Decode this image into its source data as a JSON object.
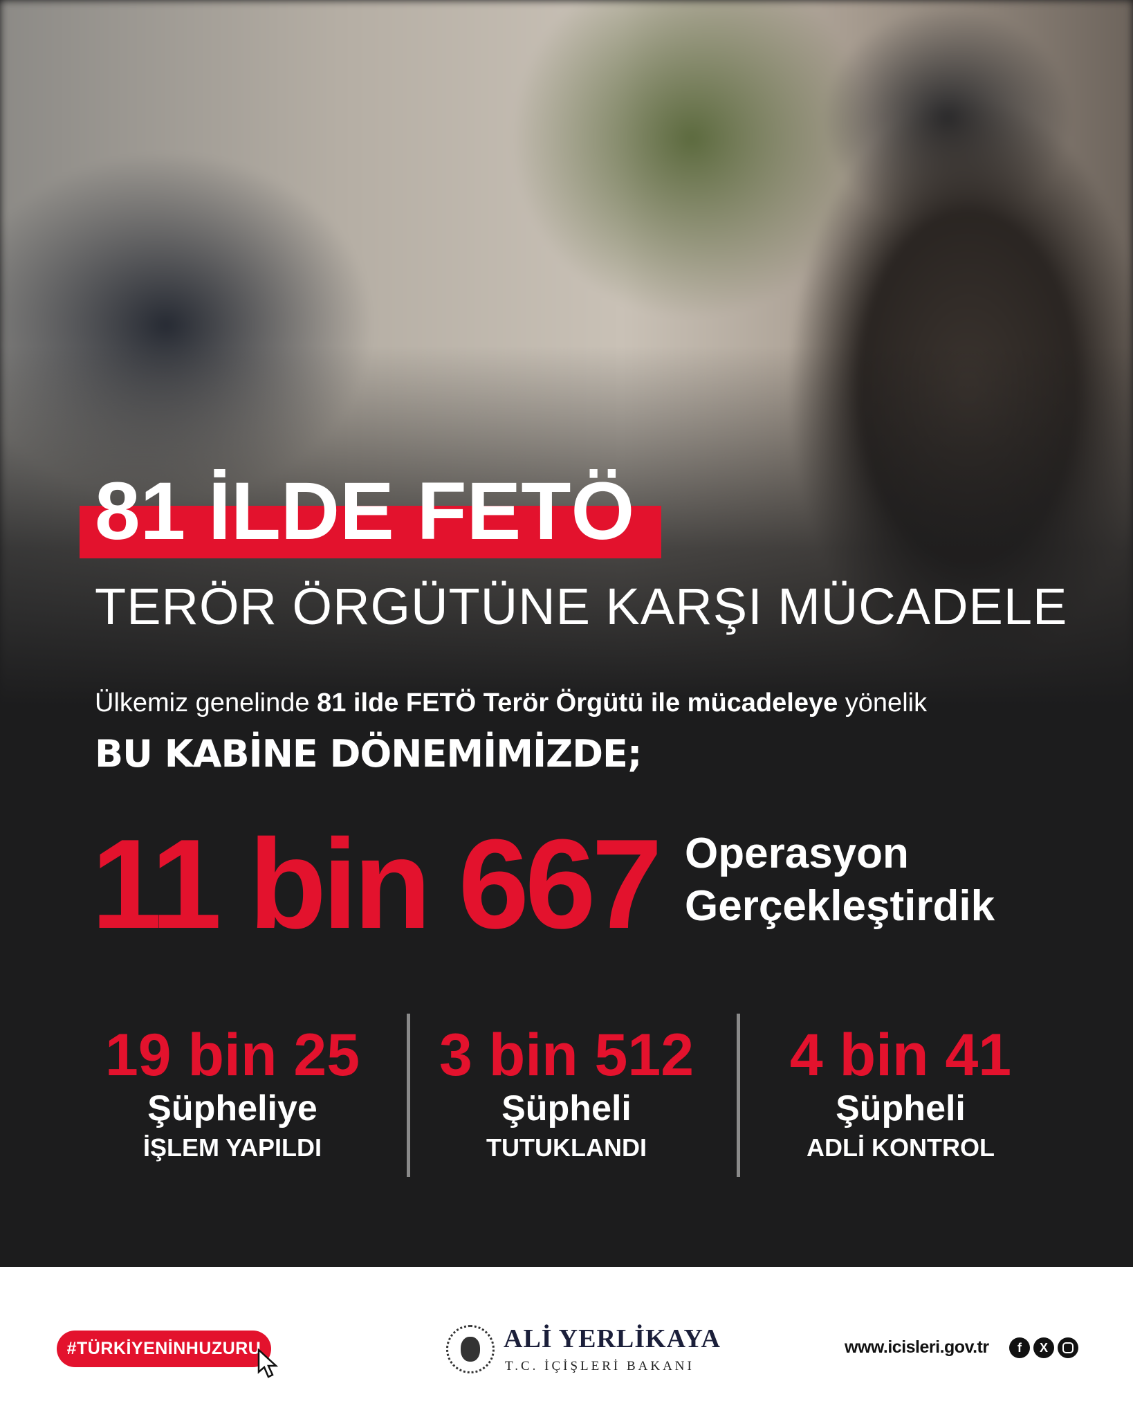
{
  "header": {
    "title": "81 İLDE FETÖ",
    "subtitle": "TERÖR ÖRGÜTÜNE KARŞI MÜCADELE"
  },
  "intro": {
    "pre": "Ülkemiz genelinde ",
    "bold": "81 ilde FETÖ Terör Örgütü ile mücadeleye",
    "post": " yönelik",
    "cabinet": "BU KABİNE DÖNEMİMİZDE;"
  },
  "headline": {
    "value": "11 bin 667",
    "line1": "Operasyon",
    "line2": "Gerçekleştirdik"
  },
  "stats": [
    {
      "value": "19 bin 25",
      "label": "Şüpheliye",
      "sub": "İŞLEM YAPILDI"
    },
    {
      "value": "3 bin 512",
      "label": "Şüpheli",
      "sub": "TUTUKLANDI"
    },
    {
      "value": "4 bin 41",
      "label": "Şüpheli",
      "sub": "ADLİ KONTROL"
    }
  ],
  "footer": {
    "hashtag": "#TÜRKİYENİNHUZURU",
    "name": "ALİ YERLİKAYA",
    "title": "T.C. İÇİŞLERİ BAKANI",
    "website": "www.icisleri.gov.tr",
    "social": [
      "facebook-icon",
      "x-icon",
      "instagram-icon"
    ]
  },
  "colors": {
    "accent": "#e3122d",
    "background": "#1c1c1d"
  }
}
